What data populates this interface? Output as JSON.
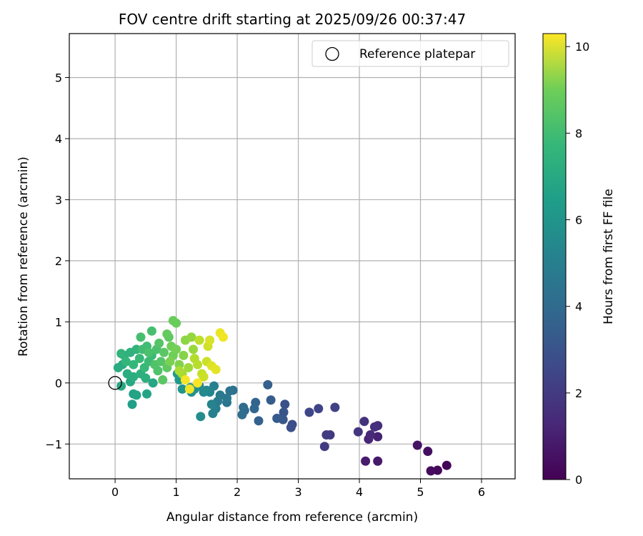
{
  "chart_data": {
    "type": "scatter",
    "title": "FOV centre drift starting at 2025/09/26 00:37:47",
    "xlabel": "Angular distance from reference (arcmin)",
    "ylabel": "Rotation from reference (arcmin)",
    "xlim": [
      -0.75,
      6.55
    ],
    "ylim": [
      -1.57,
      5.72
    ],
    "xticks": [
      0,
      1,
      2,
      3,
      4,
      5,
      6
    ],
    "yticks": [
      -1,
      0,
      1,
      2,
      3,
      4,
      5
    ],
    "xtick_labels": [
      "0",
      "1",
      "2",
      "3",
      "4",
      "5",
      "6"
    ],
    "ytick_labels": [
      "−1",
      "0",
      "1",
      "2",
      "3",
      "4",
      "5"
    ],
    "grid": true,
    "legend": {
      "position": "top-right",
      "entries": [
        {
          "label": "Reference platepar",
          "marker": "open-circle"
        }
      ]
    },
    "reference_point": {
      "x": 0,
      "y": 0
    },
    "colorbar": {
      "label": "Hours from first FF file",
      "colormap": "viridis",
      "range": [
        0,
        10.3
      ],
      "ticks": [
        0,
        2,
        4,
        6,
        8,
        10
      ],
      "tick_labels": [
        "0",
        "2",
        "4",
        "6",
        "8",
        "10"
      ]
    },
    "points": [
      {
        "x": 5.43,
        "y": -1.35,
        "c": 0.1
      },
      {
        "x": 5.28,
        "y": -1.43,
        "c": 0.2
      },
      {
        "x": 5.17,
        "y": -1.44,
        "c": 0.3
      },
      {
        "x": 5.12,
        "y": -1.12,
        "c": 0.4
      },
      {
        "x": 4.95,
        "y": -1.02,
        "c": 0.5
      },
      {
        "x": 4.3,
        "y": -1.28,
        "c": 0.7
      },
      {
        "x": 4.1,
        "y": -1.28,
        "c": 0.8
      },
      {
        "x": 4.3,
        "y": -0.88,
        "c": 1.0
      },
      {
        "x": 4.15,
        "y": -0.92,
        "c": 1.1
      },
      {
        "x": 4.18,
        "y": -0.85,
        "c": 1.2
      },
      {
        "x": 4.3,
        "y": -0.7,
        "c": 1.3
      },
      {
        "x": 4.25,
        "y": -0.72,
        "c": 1.4
      },
      {
        "x": 4.08,
        "y": -0.63,
        "c": 1.5
      },
      {
        "x": 3.98,
        "y": -0.8,
        "c": 1.6
      },
      {
        "x": 3.52,
        "y": -0.85,
        "c": 1.7
      },
      {
        "x": 3.46,
        "y": -0.85,
        "c": 1.8
      },
      {
        "x": 3.43,
        "y": -1.04,
        "c": 1.8
      },
      {
        "x": 3.6,
        "y": -0.4,
        "c": 2.0
      },
      {
        "x": 3.33,
        "y": -0.42,
        "c": 2.1
      },
      {
        "x": 3.18,
        "y": -0.48,
        "c": 2.2
      },
      {
        "x": 2.9,
        "y": -0.68,
        "c": 2.4
      },
      {
        "x": 2.88,
        "y": -0.73,
        "c": 2.5
      },
      {
        "x": 2.78,
        "y": -0.35,
        "c": 2.6
      },
      {
        "x": 2.76,
        "y": -0.48,
        "c": 2.7
      },
      {
        "x": 2.75,
        "y": -0.6,
        "c": 2.8
      },
      {
        "x": 2.65,
        "y": -0.58,
        "c": 2.9
      },
      {
        "x": 2.55,
        "y": -0.28,
        "c": 3.0
      },
      {
        "x": 2.5,
        "y": -0.03,
        "c": 3.1
      },
      {
        "x": 2.35,
        "y": -0.62,
        "c": 3.2
      },
      {
        "x": 2.3,
        "y": -0.32,
        "c": 3.3
      },
      {
        "x": 2.28,
        "y": -0.42,
        "c": 3.4
      },
      {
        "x": 2.12,
        "y": -0.45,
        "c": 3.5
      },
      {
        "x": 2.1,
        "y": -0.4,
        "c": 3.6
      },
      {
        "x": 2.08,
        "y": -0.52,
        "c": 3.7
      },
      {
        "x": 1.93,
        "y": -0.12,
        "c": 3.8
      },
      {
        "x": 1.88,
        "y": -0.13,
        "c": 3.9
      },
      {
        "x": 1.83,
        "y": -0.32,
        "c": 4.0
      },
      {
        "x": 1.83,
        "y": -0.25,
        "c": 4.1
      },
      {
        "x": 1.72,
        "y": -0.2,
        "c": 4.2
      },
      {
        "x": 1.68,
        "y": -0.3,
        "c": 4.3
      },
      {
        "x": 1.65,
        "y": -0.42,
        "c": 4.4
      },
      {
        "x": 1.6,
        "y": -0.5,
        "c": 4.5
      },
      {
        "x": 1.62,
        "y": -0.05,
        "c": 4.5
      },
      {
        "x": 1.58,
        "y": -0.35,
        "c": 4.6
      },
      {
        "x": 1.55,
        "y": -0.15,
        "c": 4.7
      },
      {
        "x": 1.5,
        "y": -0.12,
        "c": 4.8
      },
      {
        "x": 1.45,
        "y": -0.15,
        "c": 4.9
      },
      {
        "x": 1.4,
        "y": -0.55,
        "c": 5.0
      },
      {
        "x": 1.38,
        "y": -0.05,
        "c": 5.0
      },
      {
        "x": 1.3,
        "y": -0.1,
        "c": 5.1
      },
      {
        "x": 1.25,
        "y": -0.15,
        "c": 5.2
      },
      {
        "x": 1.23,
        "y": -0.08,
        "c": 5.3
      },
      {
        "x": 1.1,
        "y": -0.1,
        "c": 5.4
      },
      {
        "x": 1.05,
        "y": 0.05,
        "c": 5.5
      },
      {
        "x": 1.02,
        "y": 0.15,
        "c": 5.6
      },
      {
        "x": 0.28,
        "y": -0.35,
        "c": 5.8
      },
      {
        "x": 0.3,
        "y": -0.18,
        "c": 5.9
      },
      {
        "x": 0.35,
        "y": -0.2,
        "c": 6.0
      },
      {
        "x": 0.52,
        "y": -0.18,
        "c": 6.0
      },
      {
        "x": 0.62,
        "y": 0.0,
        "c": 6.1
      },
      {
        "x": 0.25,
        "y": 0.02,
        "c": 6.2
      },
      {
        "x": 0.1,
        "y": -0.05,
        "c": 6.2
      },
      {
        "x": 0.05,
        "y": 0.25,
        "c": 6.3
      },
      {
        "x": 0.12,
        "y": 0.3,
        "c": 6.3
      },
      {
        "x": 0.2,
        "y": 0.15,
        "c": 6.4
      },
      {
        "x": 0.3,
        "y": 0.1,
        "c": 6.4
      },
      {
        "x": 0.42,
        "y": 0.15,
        "c": 6.5
      },
      {
        "x": 0.5,
        "y": 0.08,
        "c": 6.5
      },
      {
        "x": 0.15,
        "y": 0.45,
        "c": 6.6
      },
      {
        "x": 0.25,
        "y": 0.5,
        "c": 6.6
      },
      {
        "x": 0.35,
        "y": 0.55,
        "c": 6.7
      },
      {
        "x": 0.1,
        "y": 0.48,
        "c": 6.7
      },
      {
        "x": 0.18,
        "y": 0.35,
        "c": 6.8
      },
      {
        "x": 0.3,
        "y": 0.3,
        "c": 6.8
      },
      {
        "x": 0.4,
        "y": 0.4,
        "c": 6.9
      },
      {
        "x": 0.48,
        "y": 0.25,
        "c": 6.9
      },
      {
        "x": 0.55,
        "y": 0.35,
        "c": 7.0
      },
      {
        "x": 0.6,
        "y": 0.45,
        "c": 7.0
      },
      {
        "x": 0.45,
        "y": 0.55,
        "c": 7.1
      },
      {
        "x": 0.52,
        "y": 0.6,
        "c": 7.1
      },
      {
        "x": 0.6,
        "y": 0.85,
        "c": 7.2
      },
      {
        "x": 0.42,
        "y": 0.75,
        "c": 7.2
      },
      {
        "x": 0.55,
        "y": 0.5,
        "c": 7.3
      },
      {
        "x": 0.68,
        "y": 0.55,
        "c": 7.3
      },
      {
        "x": 0.7,
        "y": 0.2,
        "c": 7.4
      },
      {
        "x": 0.65,
        "y": 0.3,
        "c": 7.4
      },
      {
        "x": 0.75,
        "y": 0.35,
        "c": 7.5
      },
      {
        "x": 0.72,
        "y": 0.65,
        "c": 7.5
      },
      {
        "x": 0.8,
        "y": 0.5,
        "c": 7.6
      },
      {
        "x": 0.78,
        "y": 0.05,
        "c": 7.6
      },
      {
        "x": 0.85,
        "y": 0.25,
        "c": 7.7
      },
      {
        "x": 0.88,
        "y": 0.75,
        "c": 7.7
      },
      {
        "x": 0.85,
        "y": 0.8,
        "c": 7.8
      },
      {
        "x": 0.95,
        "y": 1.02,
        "c": 7.9
      },
      {
        "x": 1.0,
        "y": 0.98,
        "c": 7.9
      },
      {
        "x": 0.92,
        "y": 0.6,
        "c": 8.0
      },
      {
        "x": 0.95,
        "y": 0.45,
        "c": 8.0
      },
      {
        "x": 1.0,
        "y": 0.55,
        "c": 8.1
      },
      {
        "x": 0.9,
        "y": 0.35,
        "c": 8.2
      },
      {
        "x": 1.05,
        "y": 0.3,
        "c": 8.3
      },
      {
        "x": 1.12,
        "y": 0.45,
        "c": 8.4
      },
      {
        "x": 1.15,
        "y": 0.7,
        "c": 8.5
      },
      {
        "x": 1.25,
        "y": 0.75,
        "c": 8.6
      },
      {
        "x": 1.28,
        "y": 0.55,
        "c": 8.7
      },
      {
        "x": 1.2,
        "y": 0.25,
        "c": 8.8
      },
      {
        "x": 1.1,
        "y": 0.15,
        "c": 8.9
      },
      {
        "x": 1.05,
        "y": 0.2,
        "c": 9.0
      },
      {
        "x": 1.3,
        "y": 0.4,
        "c": 9.1
      },
      {
        "x": 1.35,
        "y": 0.3,
        "c": 9.2
      },
      {
        "x": 1.38,
        "y": 0.7,
        "c": 9.3
      },
      {
        "x": 1.42,
        "y": 0.15,
        "c": 9.4
      },
      {
        "x": 1.45,
        "y": 0.1,
        "c": 9.5
      },
      {
        "x": 1.5,
        "y": 0.35,
        "c": 9.5
      },
      {
        "x": 1.52,
        "y": 0.6,
        "c": 9.6
      },
      {
        "x": 1.55,
        "y": 0.7,
        "c": 9.7
      },
      {
        "x": 1.58,
        "y": 0.28,
        "c": 9.8
      },
      {
        "x": 1.65,
        "y": 0.22,
        "c": 9.9
      },
      {
        "x": 1.72,
        "y": 0.82,
        "c": 10.0
      },
      {
        "x": 1.77,
        "y": 0.75,
        "c": 10.1
      },
      {
        "x": 1.22,
        "y": -0.1,
        "c": 10.1
      },
      {
        "x": 1.15,
        "y": 0.05,
        "c": 10.2
      },
      {
        "x": 1.35,
        "y": 0.0,
        "c": 10.2
      }
    ]
  }
}
